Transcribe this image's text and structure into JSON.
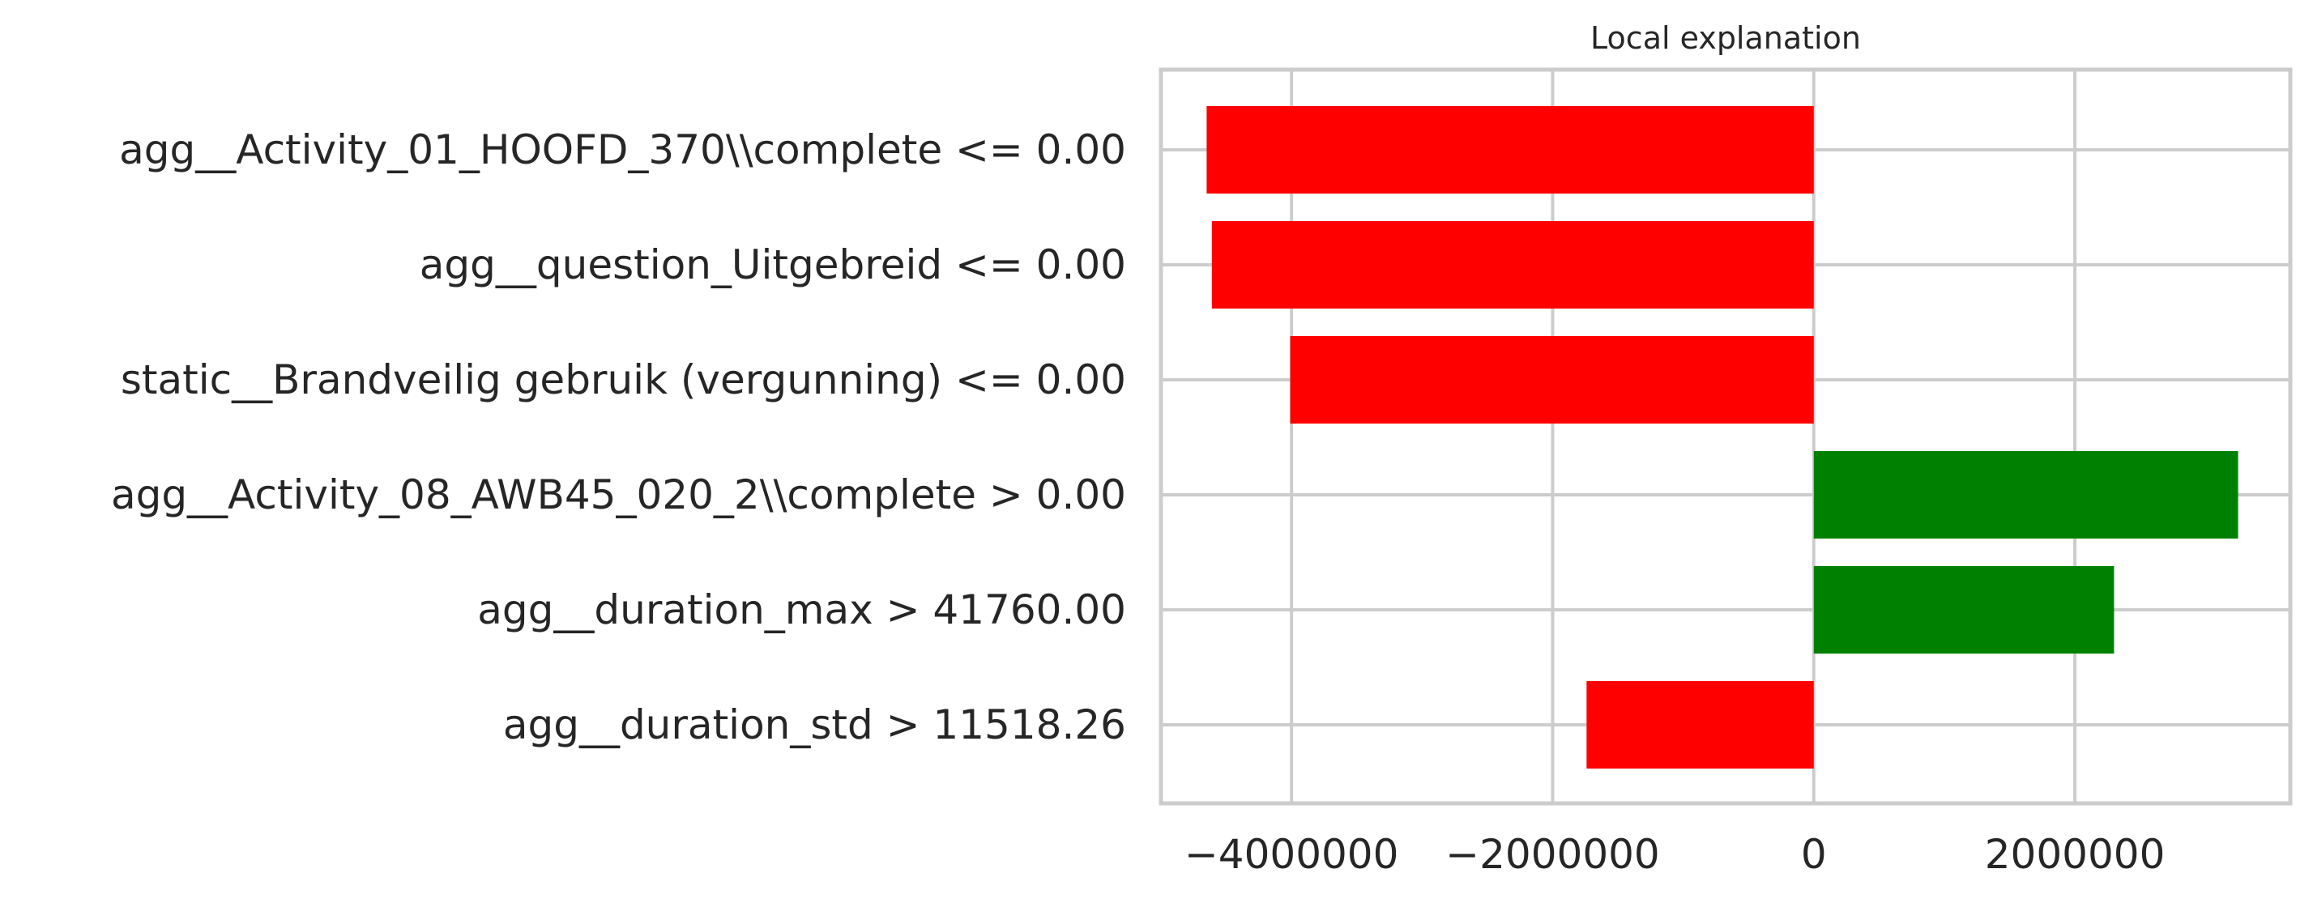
{
  "chart_data": {
    "type": "bar",
    "orientation": "horizontal",
    "title": "Local explanation",
    "xlabel": "",
    "ylabel": "",
    "categories": [
      "agg__Activity_01_HOOFD_370\\\\complete <= 0.00",
      "agg__question_Uitgebreid <= 0.00",
      "static__Brandveilig gebruik (vergunning) <= 0.00",
      "agg__Activity_08_AWB45_020_2\\\\complete > 0.00",
      "agg__duration_max > 41760.00",
      "agg__duration_std > 11518.26"
    ],
    "values": [
      -4650000,
      -4610000,
      -4010000,
      3250000,
      2300000,
      -1740000
    ],
    "xlim": [
      -5000000,
      3650000
    ],
    "xticks": [
      -4000000,
      -2000000,
      0,
      2000000
    ],
    "xtick_labels": [
      "−4000000",
      "−2000000",
      "0",
      "2000000"
    ],
    "positive_color": "#008000",
    "negative_color": "#ff0000",
    "grid": true,
    "legend": "none"
  }
}
